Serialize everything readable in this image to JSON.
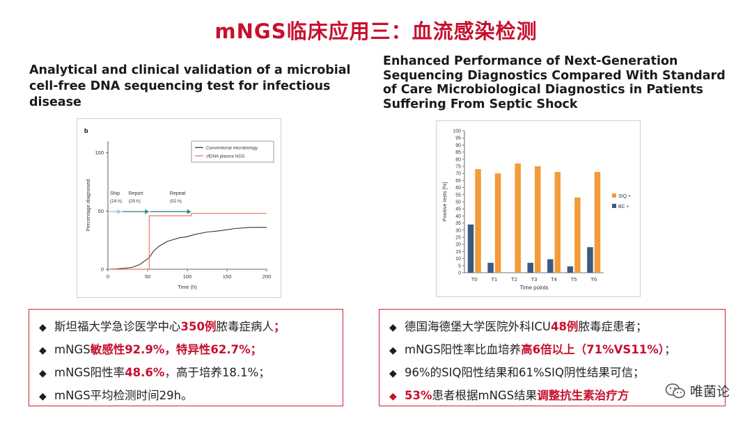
{
  "header": {
    "title": "mNGS临床应用三：血流感染检测"
  },
  "left": {
    "paper_title": "Analytical and clinical validation of a microbial cell-free DNA sequencing test for infectious disease",
    "bullets": [
      {
        "segments": [
          {
            "t": "斯坦福大学急诊医学中心",
            "hl": false
          },
          {
            "t": "350例",
            "hl": true
          },
          {
            "t": "脓毒症病人",
            "hl": false
          },
          {
            "t": "；",
            "hl": true
          }
        ]
      },
      {
        "segments": [
          {
            "t": "mNGS",
            "hl": false
          },
          {
            "t": "敏感性92.9%，特异性62.7%；",
            "hl": true
          }
        ]
      },
      {
        "segments": [
          {
            "t": "mNGS阳性率",
            "hl": false
          },
          {
            "t": "48.6%",
            "hl": true
          },
          {
            "t": "，高于培养18.1%；",
            "hl": false
          }
        ]
      },
      {
        "segments": [
          {
            "t": "mNGS平均检测时间29h。",
            "hl": false
          }
        ]
      }
    ]
  },
  "right": {
    "paper_title": "Enhanced Performance of Next-Generation Sequencing Diagnostics Compared With Standard of Care Microbiological Diagnostics in Patients Suffering From Septic Shock",
    "bullets": [
      {
        "red_diamond": false,
        "segments": [
          {
            "t": "德国海德堡大学医院外科ICU",
            "hl": false
          },
          {
            "t": "48例",
            "hl": true
          },
          {
            "t": "脓毒症患者；",
            "hl": false
          }
        ]
      },
      {
        "red_diamond": false,
        "segments": [
          {
            "t": "mNGS阳性率比血培养",
            "hl": false
          },
          {
            "t": "高6倍以上（71%VS11%）",
            "hl": true
          },
          {
            "t": "；",
            "hl": false
          }
        ]
      },
      {
        "red_diamond": false,
        "segments": [
          {
            "t": "96%的SIQ阳性结果和61%SIQ阴性结果可信；",
            "hl": false
          }
        ]
      },
      {
        "red_diamond": true,
        "segments": [
          {
            "t": "53%",
            "hl": true
          },
          {
            "t": "患者根据mNGS结果",
            "hl": false
          },
          {
            "t": "调整抗生素治疗方",
            "hl": true
          }
        ]
      }
    ]
  },
  "watermark": {
    "text": "唯菌论"
  },
  "chart_data": [
    {
      "type": "line",
      "panel_label": "b",
      "xlabel": "Time (h)",
      "ylabel": "Percentage diagnosed",
      "xlim": [
        0,
        200
      ],
      "ylim": [
        0,
        110
      ],
      "xticks": [
        "0",
        "50",
        "100",
        "150",
        "200"
      ],
      "yticks": [
        "0",
        "50",
        "100"
      ],
      "legend": [
        "Conventional microbiology",
        "cfDNA plasma NGS"
      ],
      "legend_position": "top-right",
      "series": [
        {
          "name": "Conventional microbiology",
          "color": "#333333",
          "points": [
            [
              0,
              0
            ],
            [
              10,
              0.3
            ],
            [
              20,
              0.8
            ],
            [
              30,
              1.5
            ],
            [
              40,
              4
            ],
            [
              48,
              8
            ],
            [
              52,
              10
            ],
            [
              58,
              16
            ],
            [
              65,
              20
            ],
            [
              75,
              24
            ],
            [
              90,
              27
            ],
            [
              100,
              28
            ],
            [
              110,
              30
            ],
            [
              125,
              32
            ],
            [
              140,
              33
            ],
            [
              160,
              35
            ],
            [
              180,
              36
            ],
            [
              200,
              36
            ]
          ]
        },
        {
          "name": "cfDNA plasma NGS",
          "color": "#e8765a",
          "points": [
            [
              0,
              0
            ],
            [
              52,
              0
            ],
            [
              52,
              46
            ],
            [
              105,
              46
            ],
            [
              105,
              48
            ],
            [
              200,
              48
            ]
          ]
        }
      ],
      "annotations": [
        {
          "label": "Ship",
          "sub": "(24 h)",
          "from": 0,
          "to": 17,
          "color": "#b9b9e0"
        },
        {
          "label": "Report",
          "sub": "(29 h)",
          "from": 17,
          "to": 52,
          "color": "#2e8b8b"
        },
        {
          "label": "Repeat",
          "sub": "(52 h)",
          "from": 52,
          "to": 105,
          "color": "#2e8b8b"
        }
      ]
    },
    {
      "type": "bar",
      "categories": [
        "T0",
        "T1",
        "T2",
        "T3",
        "T4",
        "T5",
        "T6"
      ],
      "xlabel": "Time points",
      "ylabel": "Positive tests [%]",
      "ylim": [
        0,
        100
      ],
      "yticks": [
        "0",
        "5",
        "10",
        "15",
        "20",
        "25",
        "30",
        "35",
        "40",
        "45",
        "50",
        "55",
        "60",
        "65",
        "70",
        "75",
        "80",
        "85",
        "90",
        "95",
        "100"
      ],
      "legend_position": "right",
      "series": [
        {
          "name": "BC +",
          "color": "#3c5a80",
          "values": [
            34,
            7,
            0,
            7,
            9.5,
            4.5,
            18
          ]
        },
        {
          "name": "SIQ +",
          "color": "#f29b38",
          "values": [
            73,
            70,
            77,
            75,
            71,
            53,
            71
          ]
        }
      ],
      "legend": [
        "SIQ +",
        "BC +"
      ]
    }
  ]
}
